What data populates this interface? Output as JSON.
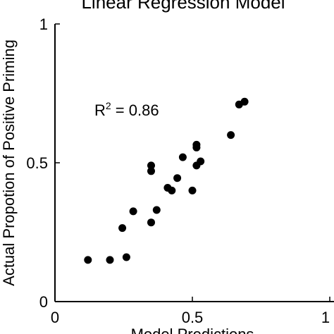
{
  "chart_data": {
    "type": "scatter",
    "title": "Linear Regression Model",
    "xlabel": "Model Predictions",
    "ylabel": "Actual Propotion of Positive Priming",
    "xlim": [
      0,
      1
    ],
    "ylim": [
      0,
      1
    ],
    "xticks": [
      "0",
      "0.5",
      "1"
    ],
    "yticks": [
      "0",
      "0.5",
      "1"
    ],
    "annotation": {
      "base": "R",
      "sup": "2",
      "rest": " = 0.86"
    },
    "grid": false,
    "marker_color": "#000000",
    "points": [
      {
        "x": 0.12,
        "y": 0.15
      },
      {
        "x": 0.2,
        "y": 0.15
      },
      {
        "x": 0.245,
        "y": 0.265
      },
      {
        "x": 0.26,
        "y": 0.16
      },
      {
        "x": 0.285,
        "y": 0.325
      },
      {
        "x": 0.35,
        "y": 0.285
      },
      {
        "x": 0.37,
        "y": 0.33
      },
      {
        "x": 0.35,
        "y": 0.47
      },
      {
        "x": 0.35,
        "y": 0.49
      },
      {
        "x": 0.41,
        "y": 0.41
      },
      {
        "x": 0.425,
        "y": 0.4
      },
      {
        "x": 0.445,
        "y": 0.445
      },
      {
        "x": 0.465,
        "y": 0.52
      },
      {
        "x": 0.5,
        "y": 0.4
      },
      {
        "x": 0.515,
        "y": 0.49
      },
      {
        "x": 0.53,
        "y": 0.505
      },
      {
        "x": 0.515,
        "y": 0.555
      },
      {
        "x": 0.515,
        "y": 0.565
      },
      {
        "x": 0.64,
        "y": 0.6
      },
      {
        "x": 0.67,
        "y": 0.71
      },
      {
        "x": 0.69,
        "y": 0.72
      }
    ]
  }
}
